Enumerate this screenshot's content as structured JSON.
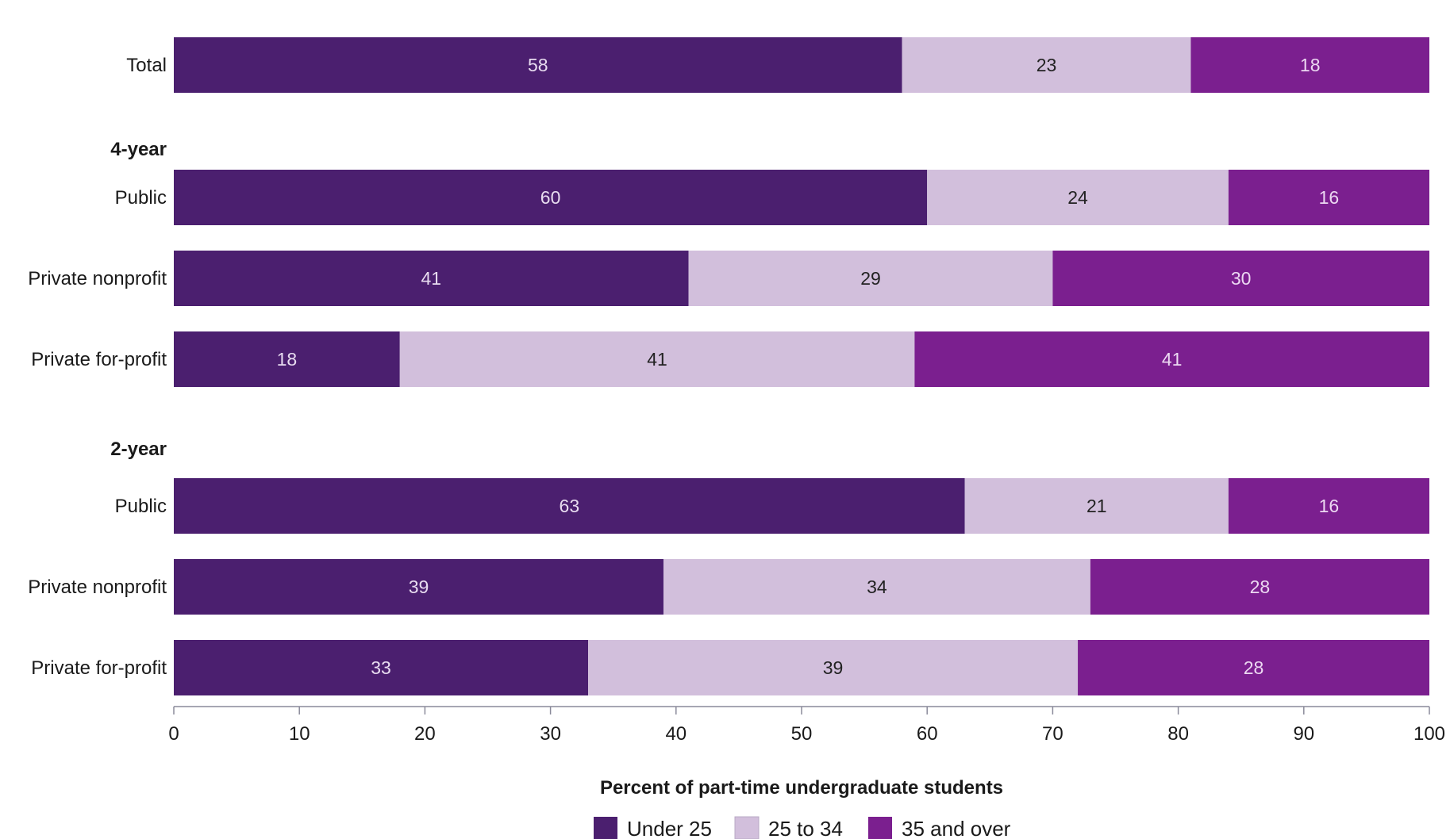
{
  "chart_data": {
    "type": "bar",
    "orientation": "horizontal",
    "stacked": true,
    "xlabel": "Percent of part-time undergraduate students",
    "xlim": [
      0,
      100
    ],
    "xticks": [
      0,
      10,
      20,
      30,
      40,
      50,
      60,
      70,
      80,
      90,
      100
    ],
    "grid": false,
    "legend_position": "bottom",
    "rows": [
      {
        "kind": "category",
        "label": "Total"
      },
      {
        "kind": "group",
        "label": "4-year"
      },
      {
        "kind": "category",
        "label": "Public"
      },
      {
        "kind": "category",
        "label": "Private nonprofit"
      },
      {
        "kind": "category",
        "label": "Private for-profit"
      },
      {
        "kind": "group",
        "label": "2-year"
      },
      {
        "kind": "category",
        "label": "Public"
      },
      {
        "kind": "category",
        "label": "Private nonprofit"
      },
      {
        "kind": "category",
        "label": "Private for-profit"
      }
    ],
    "series": [
      {
        "name": "Under 25",
        "color": "#4b1f6f",
        "label_color": "#e8dcf0",
        "values": [
          58,
          60,
          41,
          18,
          63,
          39,
          33
        ]
      },
      {
        "name": "25 to 34",
        "color": "#d2bfdc",
        "label_color": "#222222",
        "values": [
          23,
          24,
          29,
          41,
          21,
          34,
          39
        ]
      },
      {
        "name": "35 and over",
        "color": "#7b1f8f",
        "label_color": "#ecd8f2",
        "values": [
          18,
          16,
          30,
          41,
          16,
          28,
          28
        ]
      }
    ]
  }
}
